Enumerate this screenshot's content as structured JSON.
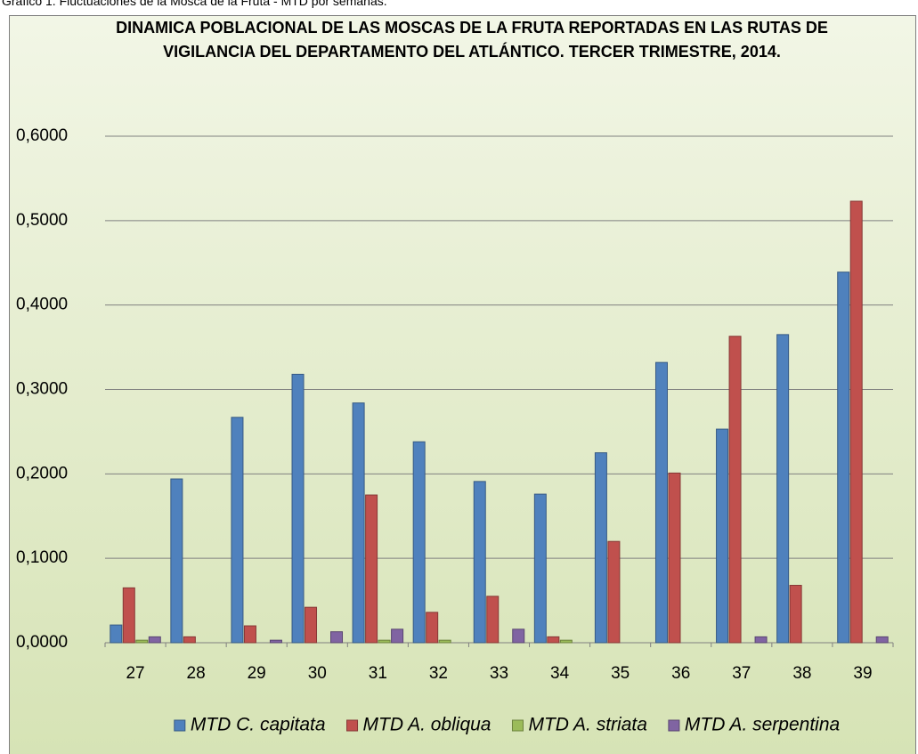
{
  "caption": "Gráfico 1. Fluctuaciones de la Mosca de la Fruta - MTD por semanas.",
  "chart_data": {
    "type": "bar",
    "title": "DINAMICA POBLACIONAL DE LAS MOSCAS DE LA FRUTA REPORTADAS EN LAS RUTAS DE VIGILANCIA DEL DEPARTAMENTO DEL ATLÁNTICO. TERCER TRIMESTRE, 2014.",
    "categories": [
      "27",
      "28",
      "29",
      "30",
      "31",
      "32",
      "33",
      "34",
      "35",
      "36",
      "37",
      "38",
      "39"
    ],
    "series": [
      {
        "name": "MTD C. capitata",
        "color": "#4f81bd",
        "values": [
          0.021,
          0.194,
          0.267,
          0.318,
          0.284,
          0.238,
          0.191,
          0.176,
          0.225,
          0.332,
          0.253,
          0.365,
          0.439
        ]
      },
      {
        "name": "MTD A. obliqua",
        "color": "#c0504d",
        "values": [
          0.065,
          0.007,
          0.02,
          0.042,
          0.175,
          0.036,
          0.055,
          0.007,
          0.12,
          0.201,
          0.363,
          0.068,
          0.523
        ]
      },
      {
        "name": "MTD A. striata",
        "color": "#9bbb59",
        "values": [
          0.003,
          0,
          0,
          0,
          0.003,
          0.003,
          0,
          0.003,
          0,
          0,
          0,
          0,
          0
        ]
      },
      {
        "name": "MTD A. serpentina",
        "color": "#8064a2",
        "values": [
          0.007,
          0,
          0.003,
          0.013,
          0.016,
          0,
          0.016,
          0,
          0,
          0,
          0.007,
          0,
          0.007
        ]
      }
    ],
    "ylim": [
      0,
      0.6
    ],
    "yticks": [
      {
        "value": 0,
        "label": "0,0000"
      },
      {
        "value": 0.1,
        "label": "0,1000"
      },
      {
        "value": 0.2,
        "label": "0,2000"
      },
      {
        "value": 0.3,
        "label": "0,3000"
      },
      {
        "value": 0.4,
        "label": "0,4000"
      },
      {
        "value": 0.5,
        "label": "0,5000"
      },
      {
        "value": 0.6,
        "label": "0,6000"
      }
    ],
    "grid": true,
    "legend": "bottom"
  }
}
